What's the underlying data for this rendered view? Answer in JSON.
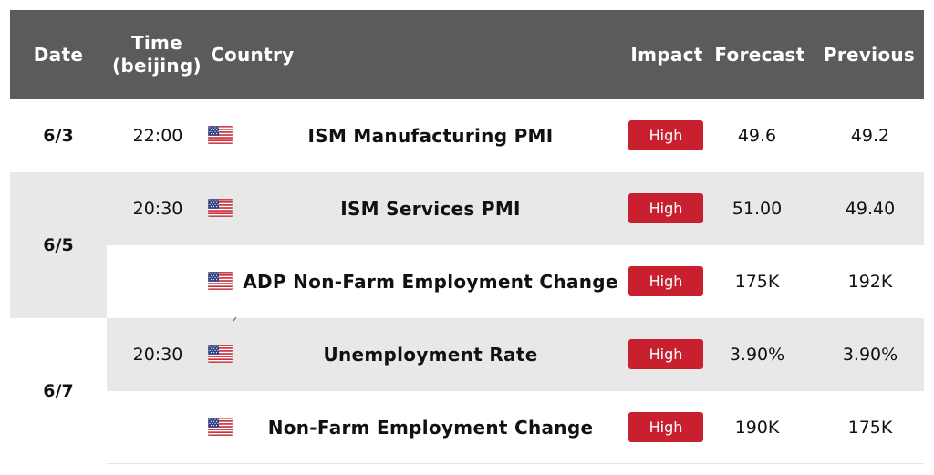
{
  "header": {
    "date": "Date",
    "time_line1": "Time",
    "time_line2": "(beijing)",
    "country": "Country",
    "impact": "Impact",
    "forecast": "Forecast",
    "previous": "Previous"
  },
  "dates": [
    "6/3",
    "6/5",
    "6/7"
  ],
  "rows": [
    {
      "time": "22:00",
      "flag": "us-flag-icon",
      "event": "ISM Manufacturing PMI",
      "impact": "High",
      "forecast": "49.6",
      "previous": "49.2"
    },
    {
      "time": "20:30",
      "flag": "us-flag-icon",
      "event": "ISM Services PMI",
      "impact": "High",
      "forecast": "51.00",
      "previous": "49.40"
    },
    {
      "time": "",
      "flag": "us-flag-icon",
      "event": "ADP Non-Farm Employment Change",
      "impact": "High",
      "forecast": "175K",
      "previous": "192K"
    },
    {
      "time": "20:30",
      "flag": "us-flag-icon",
      "event": "Unemployment Rate",
      "impact": "High",
      "forecast": "3.90%",
      "previous": "3.90%"
    },
    {
      "time": "",
      "flag": "us-flag-icon",
      "event": "Non-Farm Employment Change",
      "impact": "High",
      "forecast": "190K",
      "previous": "175K"
    }
  ],
  "colors": {
    "header_bg": "#5b5b5b",
    "band_bg": "#e8e8e8",
    "impact_high": "#c8202f"
  }
}
